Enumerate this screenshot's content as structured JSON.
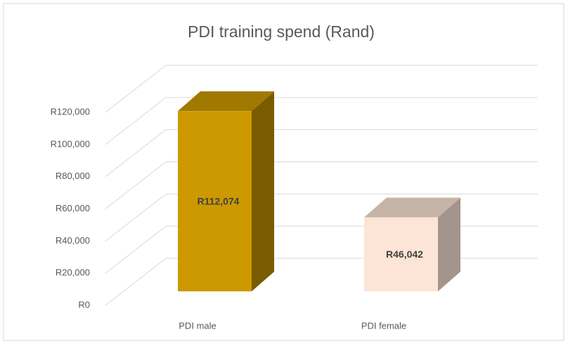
{
  "chart_data": {
    "type": "bar3d",
    "title": "PDI training spend (Rand)",
    "categories": [
      "PDI male",
      "PDI female"
    ],
    "values": [
      112074,
      46042
    ],
    "value_labels": [
      "R112,074",
      "R46,042"
    ],
    "colors": [
      "#cc9900",
      "#fce4d6"
    ],
    "ylim": [
      0,
      120000
    ],
    "yticks": [
      {
        "value": 0,
        "label": "R0"
      },
      {
        "value": 20000,
        "label": "R20,000"
      },
      {
        "value": 40000,
        "label": "R40,000"
      },
      {
        "value": 60000,
        "label": "R60,000"
      },
      {
        "value": 80000,
        "label": "R80,000"
      },
      {
        "value": 100000,
        "label": "R100,000"
      },
      {
        "value": 120000,
        "label": "R120,000"
      }
    ],
    "grid": true
  }
}
